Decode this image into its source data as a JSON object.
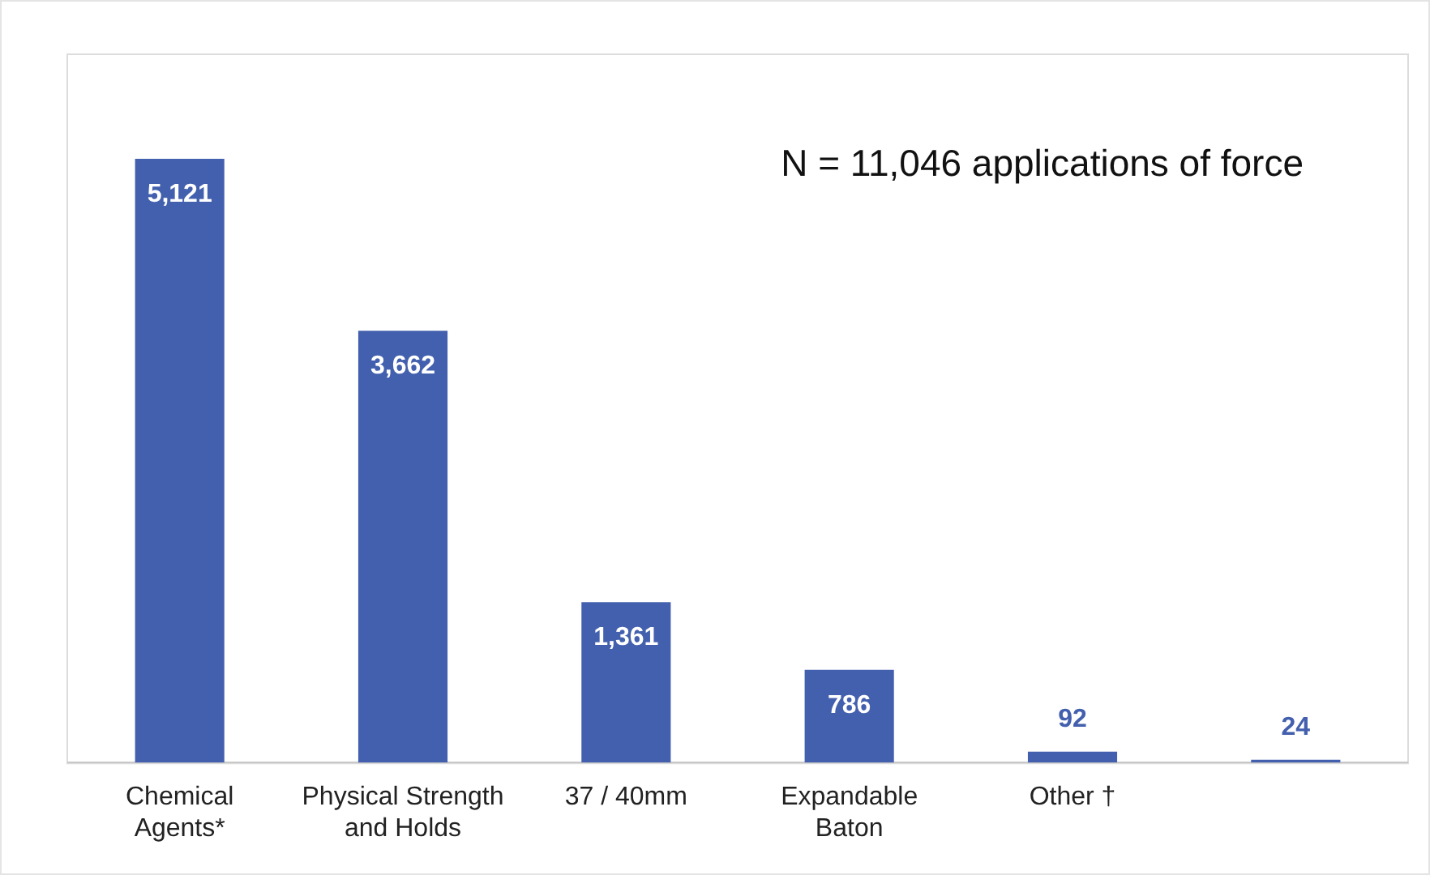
{
  "chart_data": {
    "type": "bar",
    "categories": [
      "Chemical Agents*",
      "Physical Strength and Holds",
      "37 / 40mm",
      "Expandable Baton",
      "Other †",
      null
    ],
    "values": [
      5121,
      3662,
      1361,
      786,
      92,
      24
    ],
    "color": "#4360ae",
    "value_labels": [
      "5,121",
      "3,662",
      "1,361",
      "786",
      "92",
      "24"
    ],
    "annotations": [
      "N = 11,046 applications of force"
    ],
    "grid": false,
    "legend": false
  }
}
